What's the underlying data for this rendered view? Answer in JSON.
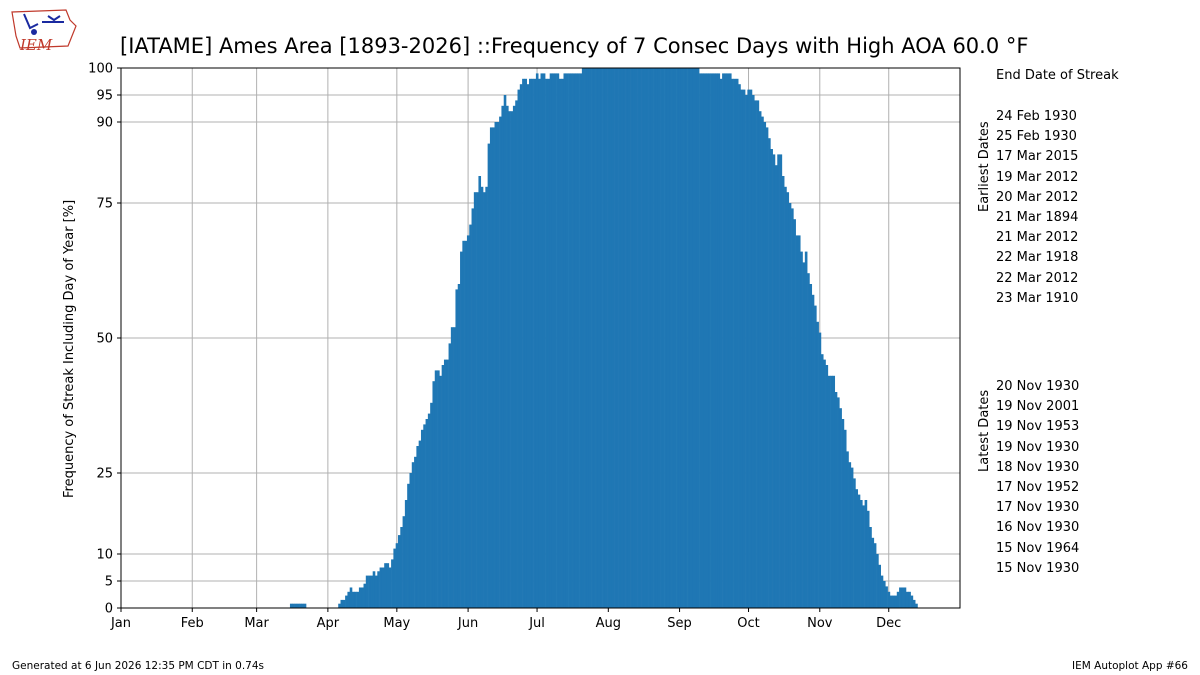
{
  "header": {
    "logo_text": "IEM",
    "title": "[IATAME] Ames Area [1893-2026] ::Frequency of 7 Consec Days with High AOA 60.0 °F"
  },
  "side_panel": {
    "header": "End Date of Streak",
    "earliest_label": "Earliest Dates",
    "earliest": [
      "24 Feb 1930",
      "25 Feb 1930",
      "17 Mar 2015",
      "19 Mar 2012",
      "20 Mar 2012",
      "21 Mar 1894",
      "21 Mar 2012",
      "22 Mar 1918",
      "22 Mar 2012",
      "23 Mar 1910"
    ],
    "latest_label": "Latest Dates",
    "latest": [
      "20 Nov 1930",
      "19 Nov 2001",
      "19 Nov 1953",
      "19 Nov 1930",
      "18 Nov 1930",
      "17 Nov 1952",
      "17 Nov 1930",
      "16 Nov 1930",
      "15 Nov 1964",
      "15 Nov 1930"
    ]
  },
  "footer": {
    "generated": "Generated at 6 Jun 2026 12:35 PM CDT in 0.74s",
    "app": "IEM Autoplot App #66"
  },
  "colors": {
    "bar": "#1f77b4",
    "grid": "#b0b0b0"
  },
  "chart_data": {
    "type": "bar",
    "ylabel": "Frequency of Streak Including Day of Year [%]",
    "xlabel": "",
    "xlim": [
      1,
      366
    ],
    "ylim": [
      0,
      100
    ],
    "grid": true,
    "y_ticks": [
      0,
      5,
      10,
      25,
      50,
      75,
      90,
      95,
      100
    ],
    "x_ticks": [
      {
        "label": "Jan",
        "day": 1
      },
      {
        "label": "Feb",
        "day": 32
      },
      {
        "label": "Mar",
        "day": 60
      },
      {
        "label": "Apr",
        "day": 91
      },
      {
        "label": "May",
        "day": 121
      },
      {
        "label": "Jun",
        "day": 152
      },
      {
        "label": "Jul",
        "day": 182
      },
      {
        "label": "Aug",
        "day": 213
      },
      {
        "label": "Sep",
        "day": 244
      },
      {
        "label": "Oct",
        "day": 274
      },
      {
        "label": "Nov",
        "day": 305
      },
      {
        "label": "Dec",
        "day": 335
      }
    ],
    "series_x_start_day": 1,
    "values": [
      0,
      0,
      0,
      0,
      0,
      0,
      0,
      0,
      0,
      0,
      0,
      0,
      0,
      0,
      0,
      0,
      0,
      0,
      0,
      0,
      0,
      0,
      0,
      0,
      0,
      0,
      0,
      0,
      0,
      0,
      0,
      0,
      0,
      0,
      0,
      0,
      0,
      0,
      0,
      0,
      0,
      0,
      0,
      0,
      0,
      0,
      0,
      0,
      0,
      0,
      0,
      0,
      0,
      0,
      0,
      0,
      0,
      0,
      0,
      0,
      0,
      0,
      0,
      0,
      0,
      0,
      0,
      0,
      0,
      0,
      0,
      0,
      0,
      0,
      0.8,
      0.8,
      0.8,
      0.8,
      0.8,
      0.8,
      0.8,
      0,
      0,
      0,
      0,
      0,
      0,
      0,
      0,
      0,
      0,
      0,
      0,
      0,
      0,
      0.8,
      1.5,
      1.5,
      2.3,
      3,
      3.8,
      3,
      3,
      3,
      3.8,
      3.8,
      4.5,
      6,
      6,
      6,
      6.8,
      6,
      6.8,
      7.5,
      7.5,
      8.3,
      8.3,
      7.5,
      9,
      11,
      12,
      13.5,
      15,
      17,
      20,
      23,
      25,
      27,
      28,
      30,
      31,
      33,
      34,
      35,
      36,
      38,
      42,
      44,
      44,
      43,
      45,
      46,
      46,
      49,
      52,
      52,
      59,
      60,
      66,
      68,
      68,
      69,
      71,
      74,
      77,
      77,
      80,
      78,
      77,
      78,
      86,
      89,
      89,
      90,
      90,
      91,
      93,
      95,
      93,
      92,
      92,
      93,
      94,
      96,
      97,
      98,
      98,
      97,
      98,
      98,
      98,
      99,
      98,
      99,
      99,
      98,
      98,
      99,
      99,
      99,
      99,
      98,
      98,
      99,
      99,
      99,
      99,
      99,
      99,
      99,
      99,
      100,
      100,
      100,
      100,
      100,
      100,
      100,
      100,
      100,
      100,
      100,
      100,
      100,
      100,
      100,
      100,
      100,
      100,
      100,
      100,
      100,
      100,
      100,
      100,
      100,
      100,
      100,
      100,
      100,
      100,
      100,
      100,
      100,
      100,
      100,
      100,
      100,
      100,
      100,
      100,
      100,
      100,
      100,
      100,
      100,
      100,
      100,
      100,
      100,
      100,
      100,
      99,
      99,
      99,
      99,
      99,
      99,
      99,
      99,
      99,
      98,
      99,
      99,
      99,
      99,
      98,
      98,
      98,
      97,
      96,
      96,
      95,
      96,
      96,
      95,
      94,
      94,
      92,
      91,
      90,
      89,
      87,
      85,
      84,
      82,
      84,
      84,
      80,
      78,
      77,
      75,
      74,
      72,
      69,
      69,
      66,
      64,
      66,
      62,
      60,
      58,
      56,
      53,
      51,
      47,
      46,
      45,
      43,
      43,
      43,
      40,
      39,
      37,
      35,
      33,
      29,
      27,
      26,
      24,
      22,
      21,
      20,
      19,
      20,
      18,
      15,
      13,
      12,
      10,
      8,
      6,
      5,
      4,
      3,
      2.3,
      2.3,
      2.3,
      3,
      3.8,
      3.8,
      3.8,
      3,
      3,
      2.3,
      1.5,
      0.8,
      0,
      0,
      0,
      0,
      0,
      0,
      0,
      0,
      0,
      0,
      0,
      0,
      0,
      0,
      0,
      0,
      0,
      0,
      0,
      0,
      0,
      0,
      0,
      0,
      0,
      0,
      0,
      0,
      0,
      0,
      0,
      0,
      0,
      0,
      0,
      0,
      0,
      0,
      0,
      0,
      0,
      0,
      0,
      0,
      0,
      0,
      0,
      0,
      0,
      0,
      0,
      0,
      0,
      0,
      0,
      0
    ]
  }
}
